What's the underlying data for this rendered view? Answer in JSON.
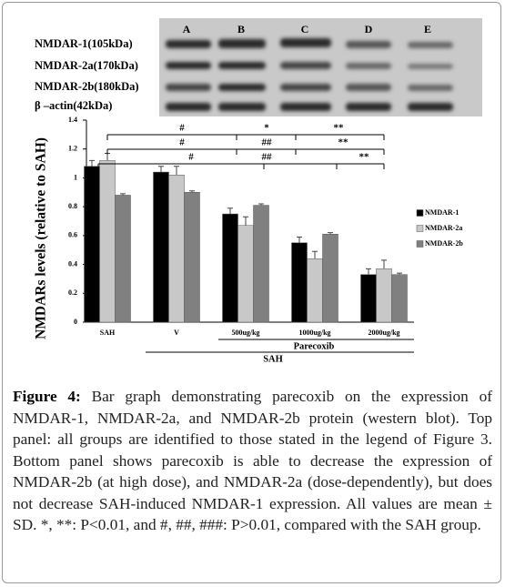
{
  "blot": {
    "lanes": [
      "A",
      "B",
      "C",
      "D",
      "E"
    ],
    "rows": [
      "NMDAR-1(105kDa)",
      "NMDAR-2a(170kDa)",
      "NMDAR-2b(180kDa)",
      "β –actin(42kDa)"
    ]
  },
  "chart_data": {
    "type": "bar",
    "y_label": "NMDARs levels (relative to SAH)",
    "categories": [
      "SAH",
      "V",
      "500ug/kg",
      "1000ug/kg",
      "2000ug/kg"
    ],
    "series": [
      {
        "name": "NMDAR-1",
        "color": "#000000",
        "values": [
          1.08,
          1.04,
          0.75,
          0.55,
          0.33
        ],
        "errors": [
          0.04,
          0.04,
          0.04,
          0.04,
          0.04
        ]
      },
      {
        "name": "NMDAR-2a",
        "color": "#c8c8c8",
        "values": [
          1.12,
          1.02,
          0.67,
          0.44,
          0.37
        ],
        "errors": [
          0.05,
          0.06,
          0.06,
          0.05,
          0.06
        ]
      },
      {
        "name": "NMDAR-2b",
        "color": "#808080",
        "values": [
          0.88,
          0.9,
          0.81,
          0.61,
          0.33
        ],
        "errors": [
          0.01,
          0.01,
          0.01,
          0.01,
          0.01
        ]
      }
    ],
    "ylim": [
      0,
      1.4
    ],
    "yticks": [
      0,
      0.2,
      0.4,
      0.6,
      0.8,
      1,
      1.2,
      1.4
    ],
    "legend": "right",
    "group_labels": [
      "Parecoxib",
      "SAH"
    ],
    "annotations": [
      "#",
      "*",
      "**",
      "#",
      "##",
      "**",
      "#",
      "##",
      "**"
    ]
  },
  "caption": {
    "label": "Figure 4:",
    "text": "Bar graph demonstrating parecoxib on the expression of NMDAR-1, NMDAR-2a, and NMDAR-2b protein (western blot). Top panel: all groups are identified to those stated in the legend of Figure 3. Bottom panel shows parecoxib is able to decrease the expression of NMDAR-2b (at high dose), and NMDAR-2a (dose-dependently), but does not decrease SAH-induced NMDAR-1 expression. All values are mean ± SD. *, **: P<0.01, and #, ##, ###: P>0.01, compared with the SAH group."
  }
}
